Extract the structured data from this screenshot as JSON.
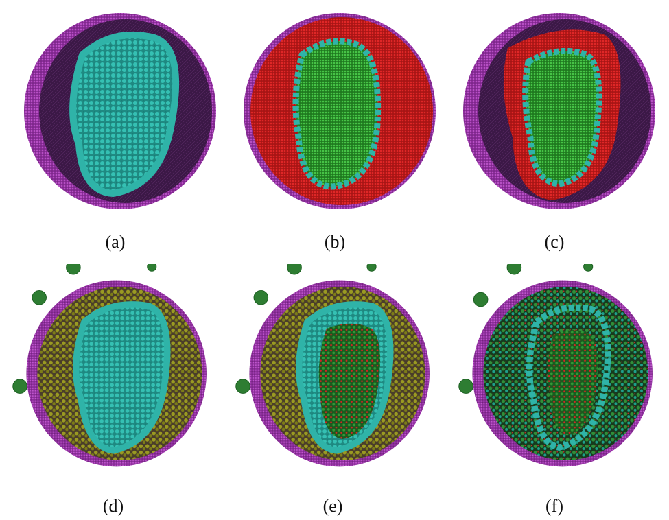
{
  "figure": {
    "panels": [
      {
        "id": "a",
        "caption": "(a)"
      },
      {
        "id": "b",
        "caption": "(b)"
      },
      {
        "id": "c",
        "caption": "(c)"
      },
      {
        "id": "d",
        "caption": "(d)"
      },
      {
        "id": "e",
        "caption": "(e)"
      },
      {
        "id": "f",
        "caption": "(f)"
      }
    ],
    "colors": {
      "membrane": "#a23fb0",
      "membrane_inner": "#3a1a45",
      "capsid": "#2fb3a8",
      "cytoplasm": "#c81e1e",
      "genome": "#2fa12f",
      "protein_olive": "#8c8c1e",
      "protein_green": "#2e7d32"
    }
  }
}
